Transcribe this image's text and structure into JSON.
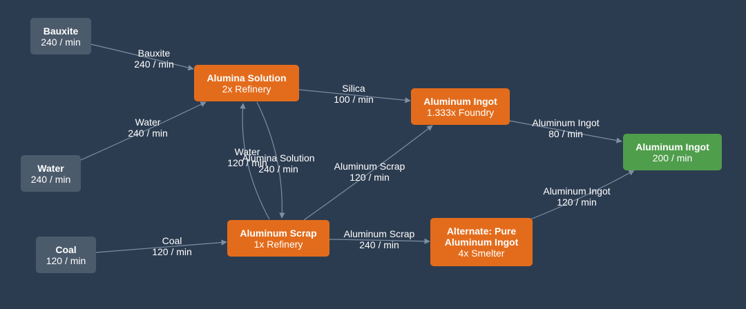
{
  "colors": {
    "background": "#2c3c50",
    "source_node": "#4c5b6c",
    "recipe_node": "#e36c1c",
    "output_node": "#4f9e4c",
    "edge": "#7d8fa3"
  },
  "nodes": {
    "bauxite": {
      "title": "Bauxite",
      "sub": "240 / min"
    },
    "water": {
      "title": "Water",
      "sub": "240 / min"
    },
    "coal": {
      "title": "Coal",
      "sub": "120 / min"
    },
    "alumina": {
      "title": "Alumina Solution",
      "sub": "2x Refinery"
    },
    "scrap": {
      "title": "Aluminum Scrap",
      "sub": "1x Refinery"
    },
    "ingot": {
      "title": "Aluminum Ingot",
      "sub": "1.333x Foundry"
    },
    "pure": {
      "title1": "Alternate: Pure",
      "title2": "Aluminum Ingot",
      "sub": "4x Smelter"
    },
    "output": {
      "title": "Aluminum Ingot",
      "sub": "200 / min"
    }
  },
  "edges": {
    "bauxite_alumina": {
      "item": "Bauxite",
      "rate": "240 / min"
    },
    "water_alumina": {
      "item": "Water",
      "rate": "240 / min"
    },
    "alumina_ingot": {
      "item": "Silica",
      "rate": "100 / min"
    },
    "scrap_alumina": {
      "item": "Water",
      "rate": "120 / min"
    },
    "alumina_scrap": {
      "item": "Alumina Solution",
      "rate": "240 / min"
    },
    "scrap_ingot": {
      "item": "Aluminum Scrap",
      "rate": "120 / min"
    },
    "coal_scrap": {
      "item": "Coal",
      "rate": "120 / min"
    },
    "scrap_pure": {
      "item": "Aluminum Scrap",
      "rate": "240 / min"
    },
    "ingot_output": {
      "item": "Aluminum Ingot",
      "rate": "80 / min"
    },
    "pure_output": {
      "item": "Aluminum Ingot",
      "rate": "120 / min"
    }
  }
}
